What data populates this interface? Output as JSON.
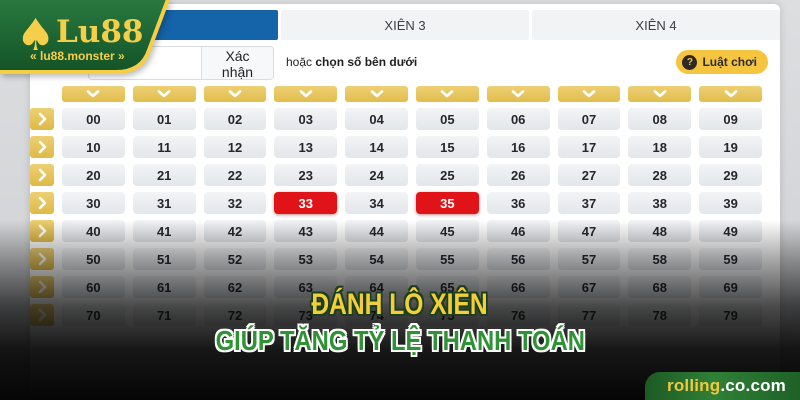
{
  "logo": {
    "brand": "Lu88",
    "domain": "« lu88.monster »",
    "spade": "♠"
  },
  "tabs": {
    "items": [
      {
        "label": "",
        "active": true
      },
      {
        "label": "XIÊN 3",
        "active": false
      },
      {
        "label": "XIÊN 4",
        "active": false
      }
    ]
  },
  "controls": {
    "input_value": "",
    "confirm_label": "Xác nhận",
    "hint_prefix": "hoặc ",
    "hint_bold": "chọn số bên dưới",
    "rules_icon": "?",
    "rules_label": "Luật chơi"
  },
  "grid": {
    "selected": [
      "33",
      "35"
    ],
    "rows": [
      [
        "00",
        "01",
        "02",
        "03",
        "04",
        "05",
        "06",
        "07",
        "08",
        "09"
      ],
      [
        "10",
        "11",
        "12",
        "13",
        "14",
        "15",
        "16",
        "17",
        "18",
        "19"
      ],
      [
        "20",
        "21",
        "22",
        "23",
        "24",
        "25",
        "26",
        "27",
        "28",
        "29"
      ],
      [
        "30",
        "31",
        "32",
        "33",
        "34",
        "35",
        "36",
        "37",
        "38",
        "39"
      ],
      [
        "40",
        "41",
        "42",
        "43",
        "44",
        "45",
        "46",
        "47",
        "48",
        "49"
      ],
      [
        "50",
        "51",
        "52",
        "53",
        "54",
        "55",
        "56",
        "57",
        "58",
        "59"
      ],
      [
        "60",
        "61",
        "62",
        "63",
        "64",
        "65",
        "66",
        "67",
        "68",
        "69"
      ],
      [
        "70",
        "71",
        "72",
        "73",
        "74",
        "75",
        "76",
        "77",
        "78",
        "79"
      ]
    ]
  },
  "banner": {
    "line1": "ĐÁNH LÔ XIÊN",
    "line2": "GIÚP TĂNG TỶ LỆ THANH TOÁN"
  },
  "watermark": {
    "prefix": "rolling",
    "suffix": ".co.com"
  },
  "colors": {
    "tab_active_blue": "#1563a8",
    "accent_yellow": "#e8c75c",
    "selected_red": "#e01418",
    "rules_pill_yellow": "#f6c53f",
    "banner_yellow": "#f2cf3a",
    "banner_green": "#2f9235",
    "logo_green": "#1d6a33",
    "logo_gold": "#f6cf4a",
    "watermark_green": "#2f8036"
  }
}
